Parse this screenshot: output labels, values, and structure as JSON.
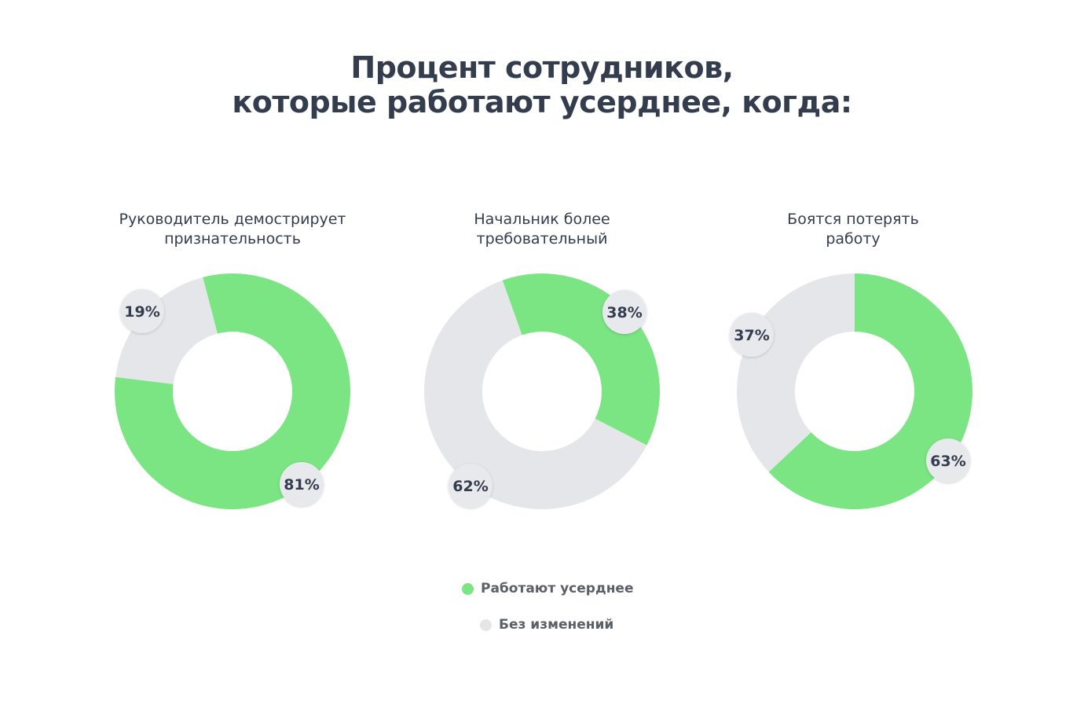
{
  "title_line1": "Процент сотрудников,",
  "title_line2": "которые работают усерднее, когда:",
  "colors": {
    "harder": "#7ae582",
    "same": "#e5e6e9",
    "text": "#333d4d"
  },
  "chart_data": [
    {
      "type": "pie",
      "title_line1": "Руководитель демострирует",
      "title_line2": "признательность",
      "series": [
        {
          "name": "Работают усерднее",
          "value": 81,
          "label": "81%"
        },
        {
          "name": "Без изменений",
          "value": 19,
          "label": "19%"
        }
      ]
    },
    {
      "type": "pie",
      "title_line1": "Начальник более",
      "title_line2": "требовательный",
      "series": [
        {
          "name": "Работают усерднее",
          "value": 38,
          "label": "38%"
        },
        {
          "name": "Без изменений",
          "value": 62,
          "label": "62%"
        }
      ]
    },
    {
      "type": "pie",
      "title_line1": "Боятся потерять",
      "title_line2": "работу",
      "series": [
        {
          "name": "Работают усерднее",
          "value": 63,
          "label": "63%"
        },
        {
          "name": "Без изменений",
          "value": 37,
          "label": "37%"
        }
      ]
    }
  ],
  "legend": [
    {
      "label": "Работают усерднее",
      "color": "#7ae582"
    },
    {
      "label": "Без изменений",
      "color": "#e5e6e9"
    }
  ]
}
